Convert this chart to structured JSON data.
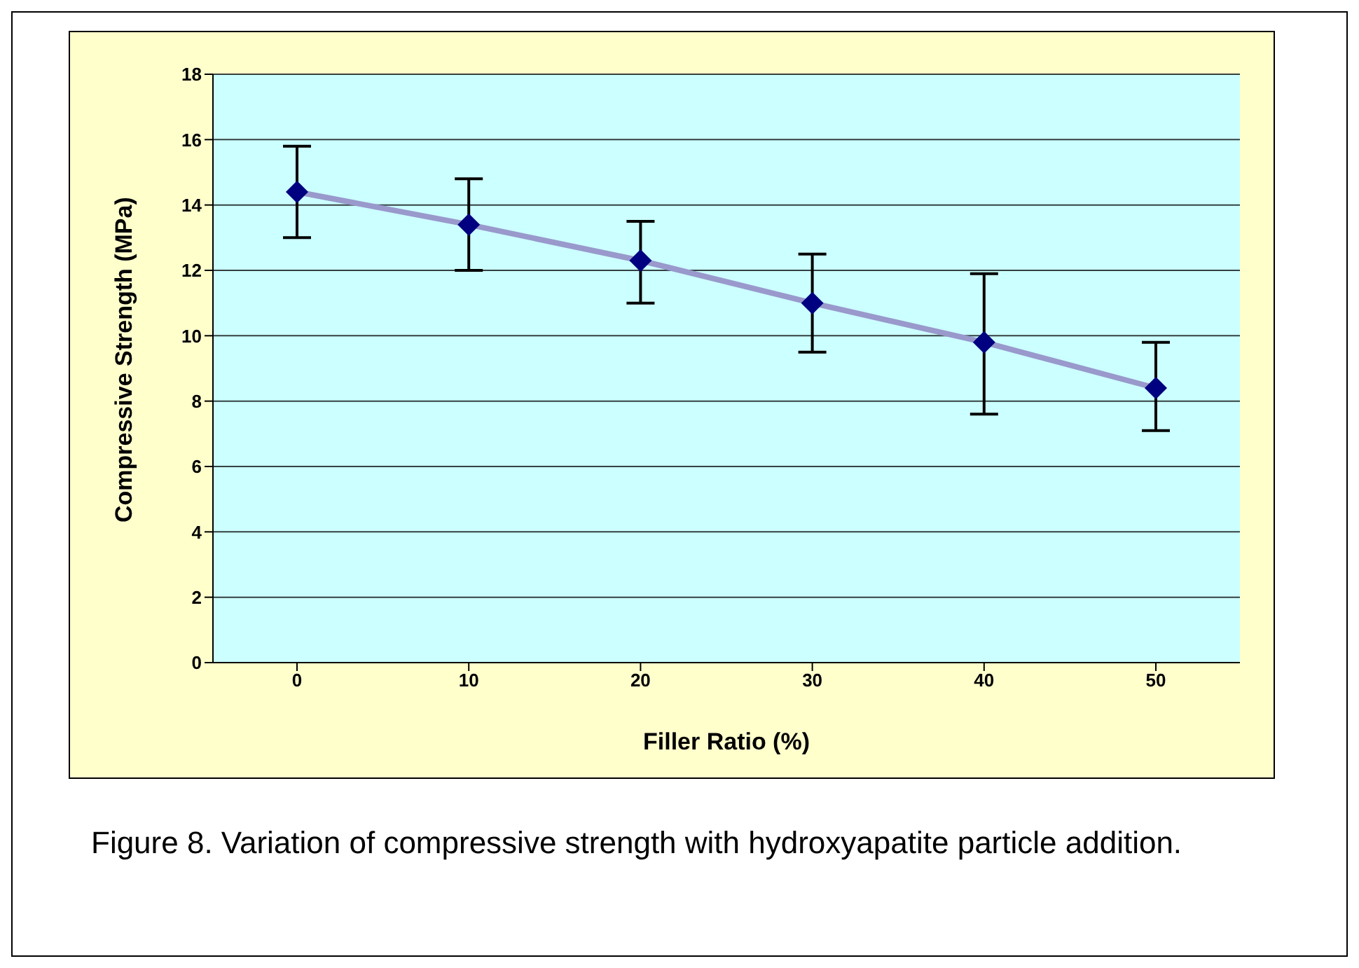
{
  "chart_data": {
    "type": "line",
    "xlabel": "Filler Ratio (%)",
    "ylabel": "Compressive Strength (MPa)",
    "categories": [
      "0",
      "10",
      "20",
      "30",
      "40",
      "50"
    ],
    "series": [
      {
        "color": "#9999cc",
        "marker": "none",
        "values": [
          14.4,
          13.4,
          12.3,
          11.0,
          9.8,
          8.4
        ]
      },
      {
        "type": "scatter",
        "color": "#000080",
        "marker": "diamond",
        "values": [
          14.4,
          13.4,
          12.3,
          11.0,
          9.8,
          8.4
        ],
        "errors": [
          [
            13.0,
            15.8
          ],
          [
            12.0,
            14.8
          ],
          [
            11.0,
            13.5
          ],
          [
            9.5,
            12.5
          ],
          [
            7.6,
            11.9
          ],
          [
            7.1,
            9.8
          ]
        ]
      }
    ],
    "ylim": [
      0,
      18
    ],
    "yticks": [
      0,
      2,
      4,
      6,
      8,
      10,
      12,
      14,
      16,
      18
    ],
    "grid": "y",
    "legend": false,
    "annotations": [
      "Figure 8. Variation of compressive strength with hydroxyapatite particle addition."
    ]
  }
}
